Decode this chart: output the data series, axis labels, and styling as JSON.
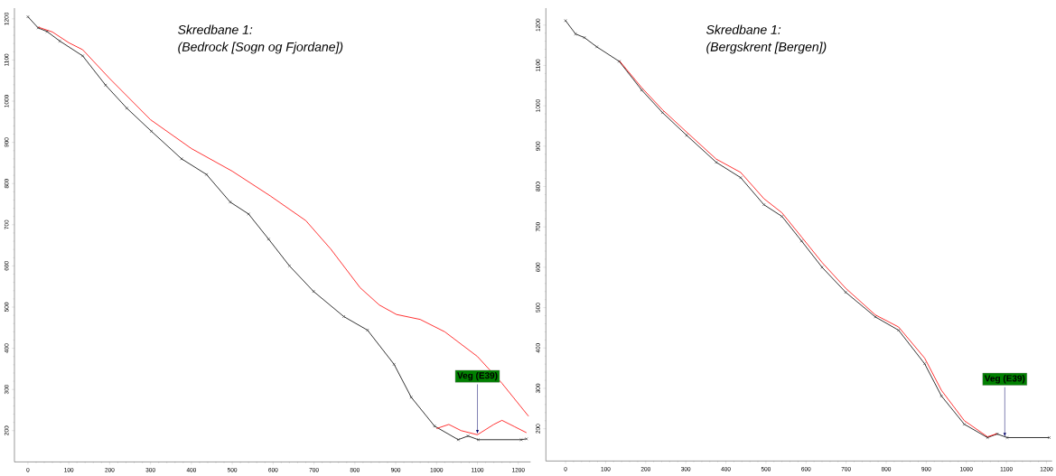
{
  "chart_data": [
    {
      "type": "line",
      "title": "Skredbane 1:",
      "subtitle": "(Bedrock [Sogn og Fjordane])",
      "xlim": [
        -33,
        1230
      ],
      "ylim": [
        124,
        1226
      ],
      "xticks": [
        0,
        100,
        200,
        300,
        400,
        500,
        600,
        700,
        800,
        900,
        1000,
        1100,
        1200
      ],
      "yticks": [
        200,
        300,
        400,
        500,
        600,
        700,
        800,
        900,
        1000,
        1100,
        1200
      ],
      "series": [
        {
          "color": "#333333",
          "marker": "cross",
          "x": [
            0,
            25,
            47,
            78,
            134,
            190,
            242,
            302,
            376,
            437,
            495,
            540,
            589,
            640,
            699,
            773,
            831,
            896,
            938,
            995,
            1053,
            1077,
            1102,
            1207,
            1220
          ],
          "values": [
            1205,
            1178,
            1169,
            1146,
            1110,
            1039,
            983,
            927,
            860,
            822,
            755,
            726,
            665,
            600,
            538,
            477,
            444,
            361,
            281,
            211,
            178,
            187,
            178,
            178,
            180
          ]
        },
        {
          "color": "#ff0000",
          "x": [
            25,
            60,
            100,
            134,
            200,
            300,
            400,
            500,
            593,
            680,
            741,
            813,
            860,
            902,
            960,
            1020,
            1100,
            1160,
            1225
          ],
          "values": [
            1180,
            1168,
            1142,
            1125,
            1055,
            955,
            885,
            830,
            770,
            710,
            641,
            547,
            505,
            482,
            470,
            440,
            380,
            315,
            235
          ]
        },
        {
          "color": "#ff0000",
          "x": [
            1000,
            1030,
            1060,
            1100,
            1140,
            1160,
            1190,
            1220
          ],
          "values": [
            205,
            215,
            200,
            190,
            215,
            225,
            210,
            195
          ]
        }
      ],
      "annotations": [
        {
          "text": "Veg (E39)",
          "x": 1100,
          "y": 192
        }
      ]
    },
    {
      "type": "line",
      "title": "Skredbane 1:",
      "subtitle": "(Bergskrent [Bergen])",
      "xlim": [
        -49,
        1214
      ],
      "ylim": [
        120,
        1242
      ],
      "xticks": [
        0,
        100,
        200,
        300,
        400,
        500,
        600,
        700,
        800,
        900,
        1000,
        1100,
        1200
      ],
      "yticks": [
        200,
        300,
        400,
        500,
        600,
        700,
        800,
        900,
        1000,
        1100,
        1200
      ],
      "series": [
        {
          "color": "#333333",
          "marker": "cross",
          "x": [
            0,
            25,
            47,
            78,
            134,
            190,
            242,
            302,
            376,
            437,
            495,
            540,
            589,
            640,
            699,
            773,
            831,
            896,
            938,
            995,
            1053,
            1077,
            1102,
            1207
          ],
          "values": [
            1211,
            1178,
            1169,
            1146,
            1110,
            1039,
            983,
            927,
            860,
            822,
            755,
            726,
            665,
            600,
            538,
            477,
            444,
            361,
            281,
            211,
            178,
            187,
            178,
            178
          ]
        },
        {
          "color": "#ff0000",
          "x": [
            134,
            190,
            242,
            302,
            376,
            437,
            495,
            540,
            589,
            640,
            699,
            773,
            831,
            896,
            938,
            995,
            1053,
            1077
          ],
          "values": [
            1112,
            1045,
            990,
            935,
            868,
            835,
            770,
            735,
            675,
            612,
            548,
            482,
            452,
            375,
            295,
            220,
            180,
            188
          ]
        }
      ],
      "annotations": [
        {
          "text": "Veg (E39)",
          "x": 1096,
          "y": 180
        }
      ]
    }
  ]
}
